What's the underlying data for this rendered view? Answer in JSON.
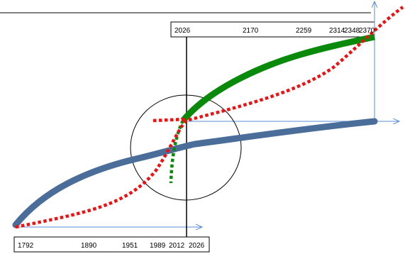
{
  "diagram": {
    "top_scale": {
      "labels": [
        "2026",
        "2170",
        "2259",
        "2314",
        "2348",
        "2370"
      ]
    },
    "bottom_scale": {
      "labels": [
        "1792",
        "1890",
        "1951",
        "1989",
        "2012",
        "2026"
      ]
    },
    "colors": {
      "blue_curve": "#4a6d9a",
      "green_curve": "#0a8a0a",
      "red_dotted_curve": "#ee1111",
      "axis_arrow": "#5b8fd6",
      "frame": "#000000"
    }
  }
}
